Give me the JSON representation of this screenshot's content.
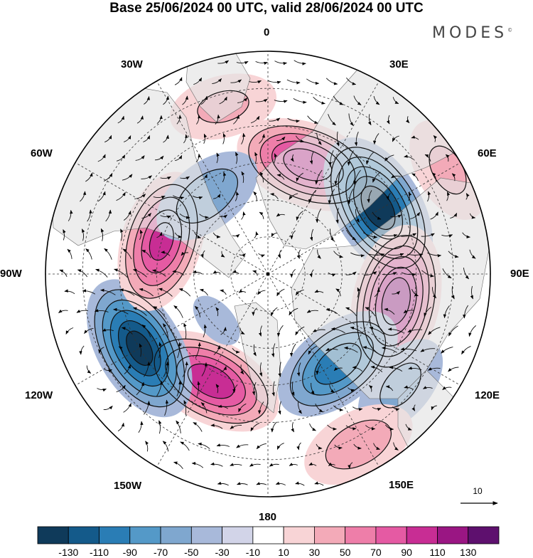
{
  "title": "Base 25/06/2024 00 UTC, valid 28/06/2024 00 UTC",
  "brand": "MODES",
  "brand_mark": "©",
  "longitude_labels": {
    "lon_0": "0",
    "lon_30e": "30E",
    "lon_60e": "60E",
    "lon_90e": "90E",
    "lon_120e": "120E",
    "lon_150e": "150E",
    "lon_180": "180",
    "lon_150w": "150W",
    "lon_120w": "120W",
    "lon_90w": "90W",
    "lon_60w": "60W",
    "lon_30w": "30W"
  },
  "vector_scale_label": "10",
  "colorbar": {
    "colors": [
      "#0f3a5a",
      "#145a8a",
      "#2a7db5",
      "#5499c8",
      "#7fa7cf",
      "#a8b9da",
      "#d2d4e8",
      "#ffffff",
      "#f8d4d6",
      "#f3aab8",
      "#ee7ea9",
      "#e55aa3",
      "#c82d94",
      "#9a1683",
      "#5e106e"
    ],
    "tick_labels": [
      "-130",
      "-110",
      "-90",
      "-70",
      "-50",
      "-30",
      "-10",
      "10",
      "30",
      "50",
      "70",
      "90",
      "110",
      "130"
    ]
  },
  "anomaly_centers": [
    {
      "lon_deg": 20,
      "colat_deg": 47,
      "value": 110
    },
    {
      "lon_deg": 59,
      "colat_deg": 52,
      "value": -130
    },
    {
      "lon_deg": 102,
      "colat_deg": 53,
      "value": 130
    },
    {
      "lon_deg": 142,
      "colat_deg": 46,
      "value": -90
    },
    {
      "lon_deg": 208,
      "colat_deg": 49,
      "value": 110
    },
    {
      "lon_deg": 240,
      "colat_deg": 60,
      "value": -120
    },
    {
      "lon_deg": 287,
      "colat_deg": 45,
      "value": 100
    },
    {
      "lon_deg": 322,
      "colat_deg": 40,
      "value": -50
    },
    {
      "lon_deg": 345,
      "colat_deg": 70,
      "value": 40
    },
    {
      "lon_deg": 130,
      "colat_deg": 70,
      "value": -40
    },
    {
      "lon_deg": 152,
      "colat_deg": 78,
      "value": 50
    },
    {
      "lon_deg": 60,
      "colat_deg": 84,
      "value": 40
    },
    {
      "lon_deg": 228,
      "colat_deg": 28,
      "value": -15
    }
  ]
}
